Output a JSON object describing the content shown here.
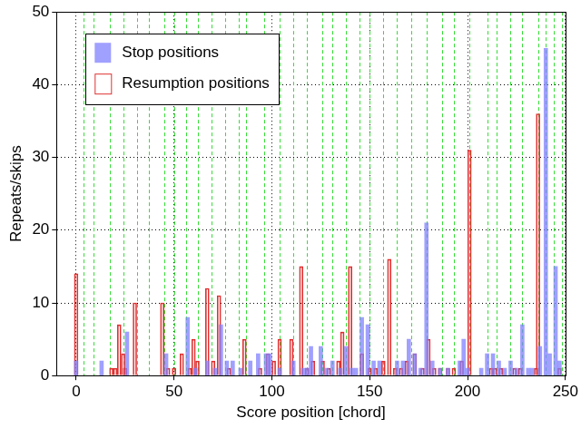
{
  "chart_data": {
    "type": "bar",
    "x_label": "Score position [chord]",
    "y_label": "Repeats/skips",
    "xlim": [
      -10,
      250
    ],
    "xticks": [
      0,
      50,
      100,
      150,
      200,
      250
    ],
    "ylim": [
      0,
      50
    ],
    "yticks": [
      0,
      10,
      20,
      30,
      40,
      50
    ],
    "grid": true,
    "legend": "upper left",
    "section_lines": [
      4,
      9,
      17,
      24,
      31,
      37,
      45,
      50,
      56,
      62,
      69,
      76,
      83,
      87,
      96,
      104,
      111,
      118,
      126,
      131,
      138,
      145,
      150,
      157,
      164,
      171,
      179,
      187,
      193,
      201,
      210,
      215,
      222,
      228,
      236,
      240,
      244,
      248
    ],
    "series": [
      {
        "name": "Stop positions",
        "color": "#8080ff",
        "x": [
          0,
          13,
          26,
          46,
          57,
          61,
          67,
          71,
          74,
          77,
          80,
          84,
          89,
          93,
          97,
          99,
          104,
          111,
          116,
          118,
          120,
          125,
          128,
          131,
          135,
          138,
          141,
          143,
          146,
          149,
          152,
          155,
          164,
          167,
          170,
          173,
          176,
          179,
          182,
          186,
          190,
          196,
          198,
          200,
          207,
          210,
          213,
          216,
          219,
          222,
          225,
          228,
          231,
          233,
          237,
          240,
          242,
          245,
          247
        ],
        "values": [
          2,
          2,
          6,
          3,
          8,
          1,
          2,
          1,
          7,
          2,
          2,
          1,
          2,
          3,
          3,
          3,
          1,
          2,
          1,
          1,
          4,
          4,
          1,
          2,
          1,
          4,
          1,
          1,
          8,
          7,
          2,
          2,
          2,
          2,
          5,
          3,
          1,
          21,
          2,
          1,
          1,
          2,
          5,
          1,
          1,
          3,
          3,
          2,
          1,
          2,
          1,
          7,
          1,
          1,
          4,
          45,
          3,
          15,
          2
        ]
      },
      {
        "name": "Resumption positions",
        "color": "#e03030",
        "x": [
          0,
          18,
          20,
          22,
          24,
          25,
          30,
          44,
          47,
          50,
          54,
          58,
          60,
          62,
          67,
          70,
          73,
          78,
          86,
          94,
          98,
          101,
          104,
          110,
          115,
          118,
          121,
          126,
          129,
          134,
          136,
          140,
          146,
          150,
          153,
          157,
          160,
          163,
          166,
          169,
          173,
          177,
          180,
          183,
          186,
          190,
          193,
          197,
          201,
          212,
          214,
          217,
          224,
          227,
          235,
          236,
          247
        ],
        "values": [
          14,
          1,
          1,
          7,
          3,
          1,
          10,
          10,
          1,
          1,
          3,
          1,
          5,
          2,
          12,
          2,
          11,
          1,
          5,
          1,
          3,
          2,
          5,
          5,
          15,
          1,
          2,
          2,
          1,
          2,
          6,
          15,
          3,
          1,
          1,
          2,
          16,
          1,
          1,
          2,
          3,
          1,
          5,
          1,
          1,
          1,
          1,
          2,
          31,
          1,
          1,
          1,
          1,
          1,
          1,
          36,
          1
        ]
      }
    ]
  }
}
